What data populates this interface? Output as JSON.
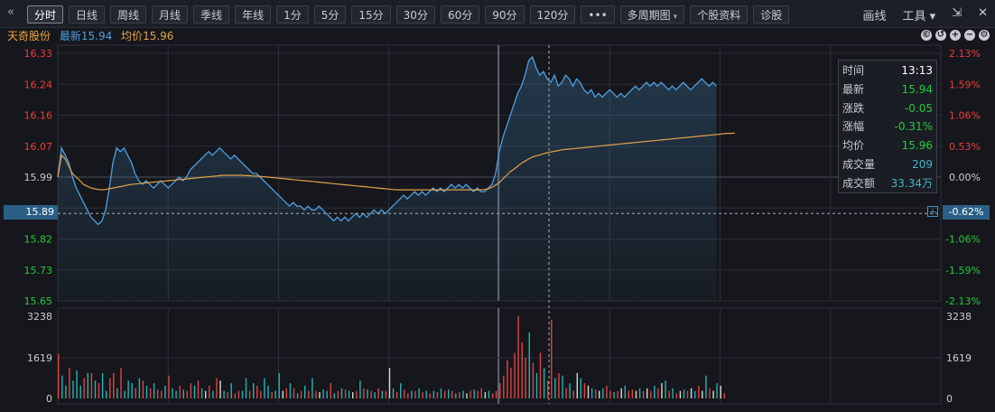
{
  "toolbar": {
    "tabs": [
      "分时",
      "日线",
      "周线",
      "月线",
      "季线",
      "年线",
      "1分",
      "5分",
      "15分",
      "30分",
      "60分",
      "90分",
      "120分",
      "•••",
      "多周期图",
      "个股资料",
      "诊股"
    ],
    "right": [
      "画线",
      "工具",
      "⇲",
      "✕"
    ]
  },
  "info": {
    "stock_name": "天奇股份",
    "latest_label": "最新",
    "latest_value": "15.94",
    "avg_label": "均价",
    "avg_value": "15.96"
  },
  "tooltip": {
    "rows": [
      {
        "k": "时间",
        "v": "13:13",
        "color": "#ffffff"
      },
      {
        "k": "最新",
        "v": "15.94",
        "color": "#27c93f"
      },
      {
        "k": "涨跌",
        "v": "-0.05",
        "color": "#27c93f"
      },
      {
        "k": "涨幅",
        "v": "-0.31%",
        "color": "#27c93f"
      },
      {
        "k": "均价",
        "v": "15.96",
        "color": "#27c93f"
      },
      {
        "k": "成交量",
        "v": "209",
        "color": "#3fb6c8"
      },
      {
        "k": "成交额",
        "v": "33.34万",
        "color": "#3fb6c8"
      }
    ]
  },
  "cursor": {
    "price_label": "15.89",
    "pct_label": "-0.62%",
    "price": 15.89
  },
  "colors": {
    "up": "#f03c3c",
    "down": "#27c93f",
    "flat": "#c9ccd3",
    "price_line": "#4e9fe0",
    "avg_line": "#e0a24a",
    "vol_up": "#e04444",
    "vol_down": "#22b4b4",
    "vol_flat": "#d8d8d8"
  },
  "chart_data": {
    "type": "line",
    "prev_close": 15.99,
    "price_ticks": [
      "16.33",
      "16.24",
      "16.16",
      "16.07",
      "15.99",
      "15.89",
      "15.82",
      "15.73",
      "15.65"
    ],
    "pct_ticks": [
      "2.13%",
      "1.59%",
      "1.06%",
      "0.53%",
      "0.00%",
      "-0.62%",
      "-1.06%",
      "-1.59%",
      "-2.13%"
    ],
    "ylim": [
      15.65,
      16.33
    ],
    "vol_ticks": [
      "3238",
      "1619",
      "0"
    ],
    "vol_max": 3238,
    "session_minutes": 240,
    "price_series": [
      15.99,
      16.07,
      16.05,
      16.03,
      15.99,
      15.96,
      15.94,
      15.92,
      15.9,
      15.88,
      15.87,
      15.86,
      15.87,
      15.9,
      15.96,
      16.03,
      16.07,
      16.06,
      16.07,
      16.05,
      16.03,
      16.0,
      15.98,
      15.97,
      15.98,
      15.97,
      15.96,
      15.97,
      15.98,
      15.97,
      15.96,
      15.97,
      15.98,
      15.99,
      15.98,
      15.99,
      16.01,
      16.02,
      16.03,
      16.04,
      16.05,
      16.06,
      16.05,
      16.06,
      16.07,
      16.06,
      16.05,
      16.04,
      16.05,
      16.04,
      16.03,
      16.02,
      16.01,
      16.0,
      16.0,
      15.99,
      15.98,
      15.97,
      15.96,
      15.95,
      15.94,
      15.93,
      15.92,
      15.91,
      15.92,
      15.91,
      15.91,
      15.9,
      15.91,
      15.9,
      15.9,
      15.91,
      15.9,
      15.89,
      15.88,
      15.87,
      15.88,
      15.87,
      15.88,
      15.87,
      15.88,
      15.89,
      15.88,
      15.89,
      15.88,
      15.89,
      15.9,
      15.89,
      15.9,
      15.89,
      15.9,
      15.91,
      15.92,
      15.93,
      15.94,
      15.93,
      15.94,
      15.95,
      15.94,
      15.95,
      15.94,
      15.95,
      15.96,
      15.95,
      15.96,
      15.95,
      15.96,
      15.97,
      15.96,
      15.97,
      15.96,
      15.97,
      15.96,
      15.95,
      15.96,
      15.95,
      15.95,
      15.96,
      15.97,
      16.0,
      16.06,
      16.1,
      16.13,
      16.16,
      16.19,
      16.22,
      16.24,
      16.27,
      16.31,
      16.32,
      16.29,
      16.27,
      16.28,
      16.26,
      16.25,
      16.27,
      16.24,
      16.25,
      16.27,
      16.26,
      16.24,
      16.26,
      16.25,
      16.23,
      16.22,
      16.23,
      16.21,
      16.22,
      16.21,
      16.22,
      16.23,
      16.22,
      16.21,
      16.22,
      16.21,
      16.22,
      16.23,
      16.24,
      16.23,
      16.24,
      16.25,
      16.24,
      16.25,
      16.24,
      16.25,
      16.24,
      16.23,
      16.24,
      16.23,
      16.24,
      16.25,
      16.24,
      16.23,
      16.24,
      16.25,
      16.26,
      16.25,
      16.24,
      16.25,
      16.24
    ],
    "avg_series": [
      15.99,
      16.05,
      16.04,
      16.02,
      16.0,
      15.99,
      15.98,
      15.97,
      15.965,
      15.96,
      15.958,
      15.956,
      15.955,
      15.956,
      15.958,
      15.96,
      15.962,
      15.964,
      15.966,
      15.968,
      15.97,
      15.971,
      15.972,
      15.973,
      15.974,
      15.975,
      15.976,
      15.977,
      15.978,
      15.979,
      15.98,
      15.981,
      15.982,
      15.983,
      15.984,
      15.985,
      15.986,
      15.987,
      15.988,
      15.989,
      15.99,
      15.991,
      15.992,
      15.993,
      15.994,
      15.995,
      15.995,
      15.995,
      15.995,
      15.995,
      15.995,
      15.994,
      15.994,
      15.993,
      15.993,
      15.992,
      15.991,
      15.99,
      15.989,
      15.988,
      15.987,
      15.986,
      15.985,
      15.984,
      15.983,
      15.982,
      15.981,
      15.98,
      15.979,
      15.978,
      15.977,
      15.976,
      15.975,
      15.974,
      15.973,
      15.972,
      15.971,
      15.97,
      15.969,
      15.968,
      15.967,
      15.966,
      15.965,
      15.964,
      15.963,
      15.962,
      15.961,
      15.96,
      15.959,
      15.958,
      15.957,
      15.956,
      15.955,
      15.955,
      15.955,
      15.955,
      15.955,
      15.955,
      15.955,
      15.955,
      15.955,
      15.955,
      15.955,
      15.955,
      15.955,
      15.955,
      15.955,
      15.955,
      15.955,
      15.955,
      15.955,
      15.955,
      15.955,
      15.955,
      15.955,
      15.955,
      15.956,
      15.958,
      15.962,
      15.968,
      15.975,
      15.985,
      15.995,
      16.005,
      16.012,
      16.02,
      16.028,
      16.034,
      16.04,
      16.045,
      16.048,
      16.051,
      16.054,
      16.057,
      16.059,
      16.061,
      16.063,
      16.065,
      16.066,
      16.067,
      16.068,
      16.069,
      16.07,
      16.071,
      16.072,
      16.073,
      16.074,
      16.075,
      16.076,
      16.077,
      16.078,
      16.079,
      16.08,
      16.081,
      16.082,
      16.083,
      16.084,
      16.085,
      16.086,
      16.087,
      16.088,
      16.089,
      16.09,
      16.091,
      16.092,
      16.093,
      16.094,
      16.095,
      16.096,
      16.097,
      16.098,
      16.099,
      16.1,
      16.101,
      16.102,
      16.103,
      16.104,
      16.105,
      16.106,
      16.107,
      16.108,
      16.109,
      16.11,
      16.11,
      16.111
    ],
    "volume_series": [
      1750,
      900,
      500,
      1200,
      700,
      1100,
      500,
      800,
      1000,
      1000,
      700,
      600,
      1000,
      300,
      800,
      1000,
      400,
      1200,
      300,
      700,
      600,
      400,
      800,
      700,
      500,
      400,
      600,
      350,
      300,
      500,
      900,
      400,
      300,
      500,
      350,
      300,
      600,
      500,
      700,
      400,
      300,
      500,
      300,
      800,
      700,
      300,
      250,
      600,
      200,
      300,
      300,
      800,
      300,
      600,
      500,
      300,
      800,
      500,
      250,
      300,
      1000,
      300,
      400,
      600,
      400,
      200,
      300,
      500,
      300,
      800,
      300,
      250,
      350,
      300,
      600,
      200,
      300,
      400,
      350,
      300,
      250,
      300,
      700,
      400,
      350,
      300,
      250,
      400,
      300,
      300,
      1200,
      400,
      250,
      600,
      350,
      200,
      300,
      300,
      400,
      250,
      300,
      200,
      300,
      250,
      400,
      300,
      350,
      300,
      200,
      250,
      300,
      200,
      300,
      350,
      300,
      400,
      250,
      300,
      200,
      300,
      600,
      900,
      1500,
      1200,
      1800,
      3238,
      2200,
      1600,
      2600,
      1400,
      1000,
      1800,
      1200,
      700,
      3100,
      800,
      1000,
      900,
      400,
      600,
      300,
      1000,
      800,
      600,
      500,
      400,
      350,
      300,
      400,
      500,
      300,
      250,
      300,
      400,
      500,
      300,
      350,
      300,
      400,
      300,
      400,
      300,
      500,
      400,
      600,
      700,
      300,
      400,
      200,
      300,
      350,
      300,
      400,
      300,
      500,
      300,
      900,
      400,
      300,
      600,
      500,
      200
    ],
    "volume_dirs": [
      "up",
      "down",
      "down",
      "up",
      "down",
      "down",
      "down",
      "up",
      "down",
      "up",
      "down",
      "up",
      "down",
      "down",
      "up",
      "up",
      "down",
      "up",
      "down",
      "down",
      "down",
      "up",
      "down",
      "up",
      "down",
      "up",
      "down",
      "up",
      "up",
      "down",
      "up",
      "down",
      "down",
      "up",
      "down",
      "up",
      "up",
      "down",
      "up",
      "down",
      "flat",
      "up",
      "down",
      "up",
      "flat",
      "down",
      "up",
      "down",
      "up",
      "up",
      "down",
      "down",
      "up",
      "down",
      "up",
      "up",
      "down",
      "down",
      "up",
      "down",
      "down",
      "flat",
      "up",
      "down",
      "up",
      "down",
      "up",
      "down",
      "up",
      "down",
      "up",
      "flat",
      "down",
      "down",
      "up",
      "down",
      "up",
      "down",
      "up",
      "down",
      "flat",
      "up",
      "down",
      "up",
      "down",
      "up",
      "down",
      "up",
      "down",
      "up",
      "flat",
      "down",
      "up",
      "down",
      "up",
      "up",
      "down",
      "up",
      "down",
      "up",
      "down",
      "up",
      "down",
      "up",
      "down",
      "up",
      "down",
      "up",
      "down",
      "up",
      "down",
      "flat",
      "up",
      "down",
      "up",
      "up",
      "flat",
      "down",
      "up",
      "up",
      "up",
      "up",
      "up",
      "up",
      "up",
      "up",
      "up",
      "up",
      "down",
      "up",
      "down",
      "up",
      "down",
      "up",
      "up",
      "down",
      "up",
      "down",
      "up",
      "down",
      "up",
      "flat",
      "down",
      "up",
      "flat",
      "down",
      "up",
      "flat",
      "down",
      "up",
      "up",
      "down",
      "up",
      "flat",
      "down",
      "up",
      "up",
      "flat",
      "down",
      "up",
      "flat",
      "up",
      "down",
      "up",
      "flat",
      "down",
      "up",
      "down",
      "up",
      "flat",
      "down",
      "up",
      "flat",
      "down",
      "up",
      "flat",
      "down",
      "up",
      "flat",
      "down",
      "flat",
      "up",
      "down",
      "up",
      "flat"
    ]
  }
}
